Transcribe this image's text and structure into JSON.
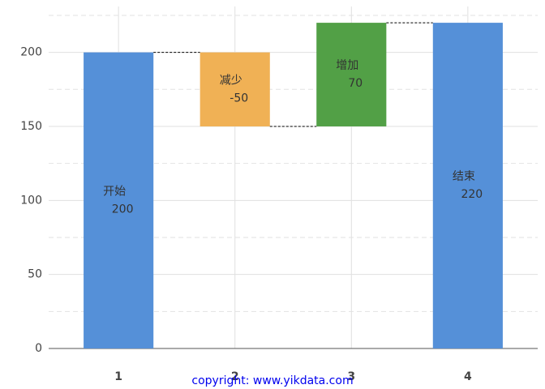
{
  "chart_data": {
    "type": "waterfall",
    "x": [
      1,
      2,
      3,
      4
    ],
    "labels": [
      "开始",
      "减少",
      "增加",
      "结束"
    ],
    "values": [
      200,
      -50,
      70,
      220
    ],
    "measure": [
      "absolute",
      "relative",
      "relative",
      "total"
    ],
    "colors": [
      "#5590d8",
      "#f0b155",
      "#52a046",
      "#5590d8"
    ],
    "xlim": [
      0.4,
      4.6
    ],
    "xticks": [
      1,
      2,
      3,
      4
    ],
    "ylim": [
      0,
      231
    ],
    "yticks": [
      0,
      50,
      100,
      150,
      200
    ],
    "yminorticks": [
      25,
      75,
      125,
      175,
      225
    ],
    "grid": true
  },
  "copyright": "copyright: www.yikdata.com"
}
